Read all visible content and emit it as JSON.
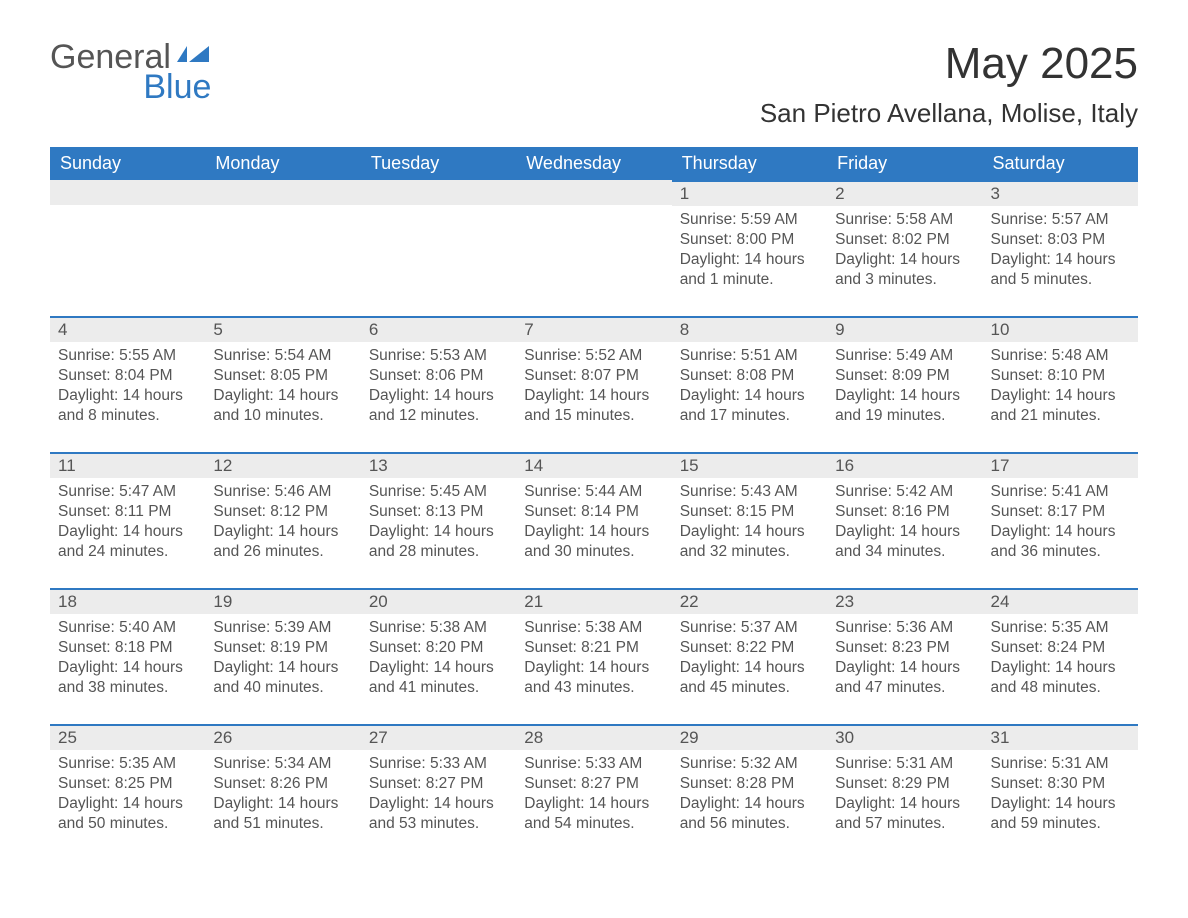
{
  "brand": {
    "word1": "General",
    "word2": "Blue",
    "brand_blue": "#2f79c2",
    "text_gray": "#555555"
  },
  "title": {
    "month": "May 2025",
    "location": "San Pietro Avellana, Molise, Italy"
  },
  "column_headers": [
    "Sunday",
    "Monday",
    "Tuesday",
    "Wednesday",
    "Thursday",
    "Friday",
    "Saturday"
  ],
  "colors": {
    "header_bg": "#2f79c2",
    "day_header_bg": "#ececec",
    "rule_color": "#2f79c2",
    "background": "#ffffff",
    "text": "#444444"
  },
  "weeks": [
    [
      null,
      null,
      null,
      null,
      {
        "day": "1",
        "sunrise": "Sunrise: 5:59 AM",
        "sunset": "Sunset: 8:00 PM",
        "daylight1": "Daylight: 14 hours",
        "daylight2": "and 1 minute."
      },
      {
        "day": "2",
        "sunrise": "Sunrise: 5:58 AM",
        "sunset": "Sunset: 8:02 PM",
        "daylight1": "Daylight: 14 hours",
        "daylight2": "and 3 minutes."
      },
      {
        "day": "3",
        "sunrise": "Sunrise: 5:57 AM",
        "sunset": "Sunset: 8:03 PM",
        "daylight1": "Daylight: 14 hours",
        "daylight2": "and 5 minutes."
      }
    ],
    [
      {
        "day": "4",
        "sunrise": "Sunrise: 5:55 AM",
        "sunset": "Sunset: 8:04 PM",
        "daylight1": "Daylight: 14 hours",
        "daylight2": "and 8 minutes."
      },
      {
        "day": "5",
        "sunrise": "Sunrise: 5:54 AM",
        "sunset": "Sunset: 8:05 PM",
        "daylight1": "Daylight: 14 hours",
        "daylight2": "and 10 minutes."
      },
      {
        "day": "6",
        "sunrise": "Sunrise: 5:53 AM",
        "sunset": "Sunset: 8:06 PM",
        "daylight1": "Daylight: 14 hours",
        "daylight2": "and 12 minutes."
      },
      {
        "day": "7",
        "sunrise": "Sunrise: 5:52 AM",
        "sunset": "Sunset: 8:07 PM",
        "daylight1": "Daylight: 14 hours",
        "daylight2": "and 15 minutes."
      },
      {
        "day": "8",
        "sunrise": "Sunrise: 5:51 AM",
        "sunset": "Sunset: 8:08 PM",
        "daylight1": "Daylight: 14 hours",
        "daylight2": "and 17 minutes."
      },
      {
        "day": "9",
        "sunrise": "Sunrise: 5:49 AM",
        "sunset": "Sunset: 8:09 PM",
        "daylight1": "Daylight: 14 hours",
        "daylight2": "and 19 minutes."
      },
      {
        "day": "10",
        "sunrise": "Sunrise: 5:48 AM",
        "sunset": "Sunset: 8:10 PM",
        "daylight1": "Daylight: 14 hours",
        "daylight2": "and 21 minutes."
      }
    ],
    [
      {
        "day": "11",
        "sunrise": "Sunrise: 5:47 AM",
        "sunset": "Sunset: 8:11 PM",
        "daylight1": "Daylight: 14 hours",
        "daylight2": "and 24 minutes."
      },
      {
        "day": "12",
        "sunrise": "Sunrise: 5:46 AM",
        "sunset": "Sunset: 8:12 PM",
        "daylight1": "Daylight: 14 hours",
        "daylight2": "and 26 minutes."
      },
      {
        "day": "13",
        "sunrise": "Sunrise: 5:45 AM",
        "sunset": "Sunset: 8:13 PM",
        "daylight1": "Daylight: 14 hours",
        "daylight2": "and 28 minutes."
      },
      {
        "day": "14",
        "sunrise": "Sunrise: 5:44 AM",
        "sunset": "Sunset: 8:14 PM",
        "daylight1": "Daylight: 14 hours",
        "daylight2": "and 30 minutes."
      },
      {
        "day": "15",
        "sunrise": "Sunrise: 5:43 AM",
        "sunset": "Sunset: 8:15 PM",
        "daylight1": "Daylight: 14 hours",
        "daylight2": "and 32 minutes."
      },
      {
        "day": "16",
        "sunrise": "Sunrise: 5:42 AM",
        "sunset": "Sunset: 8:16 PM",
        "daylight1": "Daylight: 14 hours",
        "daylight2": "and 34 minutes."
      },
      {
        "day": "17",
        "sunrise": "Sunrise: 5:41 AM",
        "sunset": "Sunset: 8:17 PM",
        "daylight1": "Daylight: 14 hours",
        "daylight2": "and 36 minutes."
      }
    ],
    [
      {
        "day": "18",
        "sunrise": "Sunrise: 5:40 AM",
        "sunset": "Sunset: 8:18 PM",
        "daylight1": "Daylight: 14 hours",
        "daylight2": "and 38 minutes."
      },
      {
        "day": "19",
        "sunrise": "Sunrise: 5:39 AM",
        "sunset": "Sunset: 8:19 PM",
        "daylight1": "Daylight: 14 hours",
        "daylight2": "and 40 minutes."
      },
      {
        "day": "20",
        "sunrise": "Sunrise: 5:38 AM",
        "sunset": "Sunset: 8:20 PM",
        "daylight1": "Daylight: 14 hours",
        "daylight2": "and 41 minutes."
      },
      {
        "day": "21",
        "sunrise": "Sunrise: 5:38 AM",
        "sunset": "Sunset: 8:21 PM",
        "daylight1": "Daylight: 14 hours",
        "daylight2": "and 43 minutes."
      },
      {
        "day": "22",
        "sunrise": "Sunrise: 5:37 AM",
        "sunset": "Sunset: 8:22 PM",
        "daylight1": "Daylight: 14 hours",
        "daylight2": "and 45 minutes."
      },
      {
        "day": "23",
        "sunrise": "Sunrise: 5:36 AM",
        "sunset": "Sunset: 8:23 PM",
        "daylight1": "Daylight: 14 hours",
        "daylight2": "and 47 minutes."
      },
      {
        "day": "24",
        "sunrise": "Sunrise: 5:35 AM",
        "sunset": "Sunset: 8:24 PM",
        "daylight1": "Daylight: 14 hours",
        "daylight2": "and 48 minutes."
      }
    ],
    [
      {
        "day": "25",
        "sunrise": "Sunrise: 5:35 AM",
        "sunset": "Sunset: 8:25 PM",
        "daylight1": "Daylight: 14 hours",
        "daylight2": "and 50 minutes."
      },
      {
        "day": "26",
        "sunrise": "Sunrise: 5:34 AM",
        "sunset": "Sunset: 8:26 PM",
        "daylight1": "Daylight: 14 hours",
        "daylight2": "and 51 minutes."
      },
      {
        "day": "27",
        "sunrise": "Sunrise: 5:33 AM",
        "sunset": "Sunset: 8:27 PM",
        "daylight1": "Daylight: 14 hours",
        "daylight2": "and 53 minutes."
      },
      {
        "day": "28",
        "sunrise": "Sunrise: 5:33 AM",
        "sunset": "Sunset: 8:27 PM",
        "daylight1": "Daylight: 14 hours",
        "daylight2": "and 54 minutes."
      },
      {
        "day": "29",
        "sunrise": "Sunrise: 5:32 AM",
        "sunset": "Sunset: 8:28 PM",
        "daylight1": "Daylight: 14 hours",
        "daylight2": "and 56 minutes."
      },
      {
        "day": "30",
        "sunrise": "Sunrise: 5:31 AM",
        "sunset": "Sunset: 8:29 PM",
        "daylight1": "Daylight: 14 hours",
        "daylight2": "and 57 minutes."
      },
      {
        "day": "31",
        "sunrise": "Sunrise: 5:31 AM",
        "sunset": "Sunset: 8:30 PM",
        "daylight1": "Daylight: 14 hours",
        "daylight2": "and 59 minutes."
      }
    ]
  ]
}
